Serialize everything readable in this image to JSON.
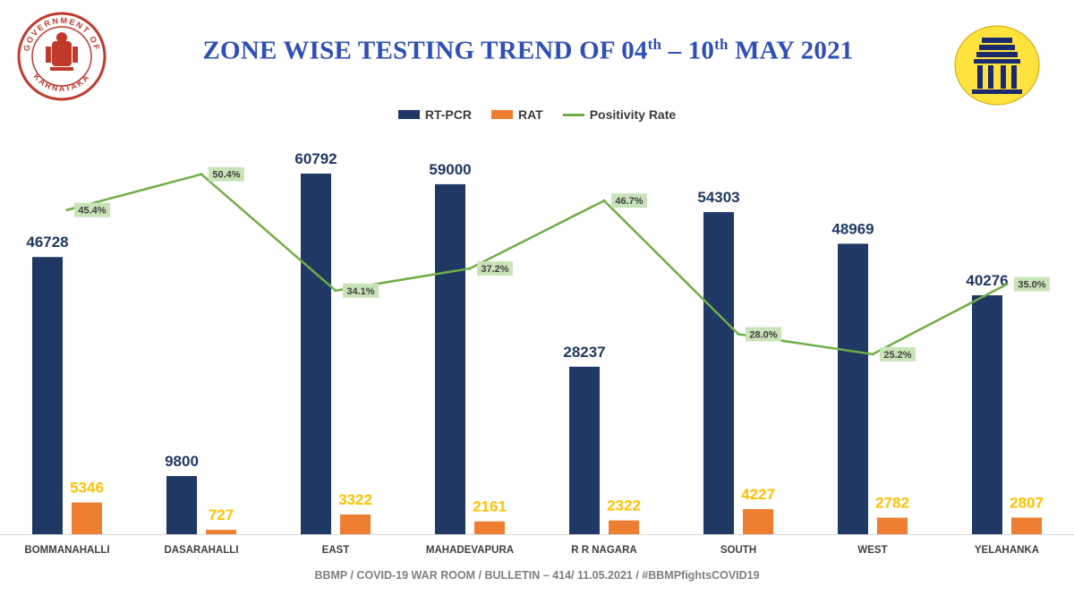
{
  "header": {
    "title_main": "ZONE WISE TESTING TREND OF 04",
    "title_sup1": "th",
    "title_mid": " – 10",
    "title_sup2": "th",
    "title_end": " MAY 2021",
    "left_logo_text_top": "GOVERNMENT OF",
    "left_logo_text_bottom": "KARNATAKA"
  },
  "colors": {
    "rtpcr": "#1f3864",
    "rat": "#ed7d31",
    "positivity": "#70ad47",
    "rat_label": "#ffc000",
    "rate_label_bg": "#c9e3b8"
  },
  "chart_data": {
    "type": "bar",
    "categories": [
      "BOMMANAHALLI",
      "DASARAHALLI",
      "EAST",
      "MAHADEVAPURA",
      "R R NAGARA",
      "SOUTH",
      "WEST",
      "YELAHANKA"
    ],
    "series": [
      {
        "name": "RT-PCR",
        "values": [
          46728,
          9800,
          60792,
          59000,
          28237,
          54303,
          48969,
          40276
        ]
      },
      {
        "name": "RAT",
        "values": [
          5346,
          727,
          3322,
          2161,
          2322,
          4227,
          2782,
          2807
        ]
      }
    ],
    "line_series": {
      "name": "Positivity Rate",
      "values": [
        45.4,
        50.4,
        34.1,
        37.2,
        46.7,
        28.0,
        25.2,
        35.0
      ],
      "labels": [
        "45.4%",
        "50.4%",
        "34.1%",
        "37.2%",
        "46.7%",
        "28.0%",
        "25.2%",
        "35.0%"
      ]
    },
    "ylim": [
      0,
      62000
    ],
    "line_ylim": [
      0,
      56
    ],
    "legend_position": "top-center",
    "grid": false
  },
  "footer": {
    "text": "BBMP / COVID-19 WAR ROOM / BULLETIN – 414/ 11.05.2021 / #BBMPfightsCOVID19"
  }
}
